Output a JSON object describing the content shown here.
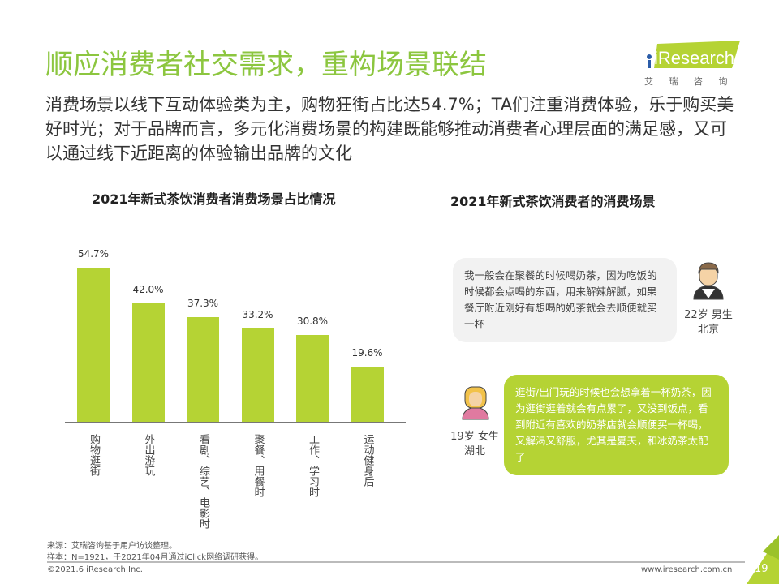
{
  "header": {
    "title": "顺应消费者社交需求，重构场景联结",
    "subtitle": "消费场景以线下互动体验类为主，购物狂街占比达54.7%；TA们注重消费体验，乐于购买美好时光；对于品牌而言，多元化消费场景的构建既能够推动消费者心理层面的满足感，又可以通过线下近距离的体验输出品牌的文化"
  },
  "logo": {
    "brand": "iResearch",
    "cn": "艾 瑞 咨 询",
    "color": "#b5d334"
  },
  "chart_data": {
    "type": "bar",
    "title": "2021年新式茶饮消费者消费场景占比情况",
    "categories": [
      "购物逛街",
      "外出游玩",
      "看剧、综艺、电影时",
      "聚餐、用餐时",
      "工作、学习时",
      "运动健身后"
    ],
    "values": [
      54.7,
      42.0,
      37.3,
      33.2,
      30.8,
      19.6
    ],
    "labels": [
      "54.7%",
      "42.0%",
      "37.3%",
      "33.2%",
      "30.8%",
      "19.6%"
    ],
    "unit": "%",
    "color": "#b5d334"
  },
  "scenes": {
    "title": "2021年新式茶饮消费者的消费场景",
    "quotes": [
      {
        "text": "我一般会在聚餐的时候喝奶茶，因为吃饭的时候都会点喝的东西，用来解辣解腻，如果餐厅附近刚好有想喝的奶茶就会去顺便就买一杯",
        "who": "22岁 男生",
        "where": "北京",
        "icon": "male-avatar-icon",
        "bg": "#f2f2f2"
      },
      {
        "text": "逛街/出门玩的时候也会想拿着一杯奶茶，因为逛街逛着就会有点累了，又没到饭点，看到附近有喜欢的奶茶店就会顺便买一杯喝，又解渴又舒服，尤其是夏天，和冰奶茶太配了",
        "who": "19岁 女生",
        "where": "湖北",
        "icon": "female-avatar-icon",
        "bg": "#b5d334"
      }
    ]
  },
  "footer": {
    "source": "来源：艾瑞咨询基于用户访谈整理。",
    "sample": "样本：N=1921，于2021年04月通过iClick网络调研获得。",
    "copyright": "©2021.6 iResearch Inc.",
    "url": "www.iresearch.com.cn",
    "page": "19"
  }
}
